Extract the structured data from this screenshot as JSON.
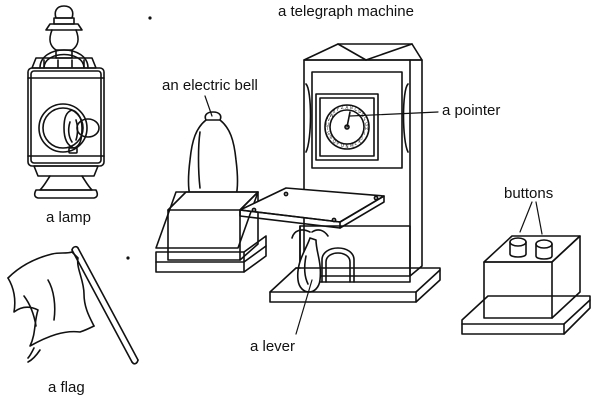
{
  "labels": {
    "telegraph_machine": "a telegraph machine",
    "electric_bell": "an electric bell",
    "pointer": "a pointer",
    "lamp": "a lamp",
    "buttons": "buttons",
    "flag": "a flag",
    "lever": "a lever"
  },
  "dial": {
    "letters": [
      "A",
      "B",
      "C",
      "D",
      "E",
      "F",
      "G",
      "H",
      "I",
      "J",
      "K",
      "L",
      "M",
      "N",
      "O",
      "P",
      "Q",
      "R",
      "S",
      "T",
      "U",
      "V",
      "W",
      "X",
      "Y",
      "Z"
    ]
  }
}
